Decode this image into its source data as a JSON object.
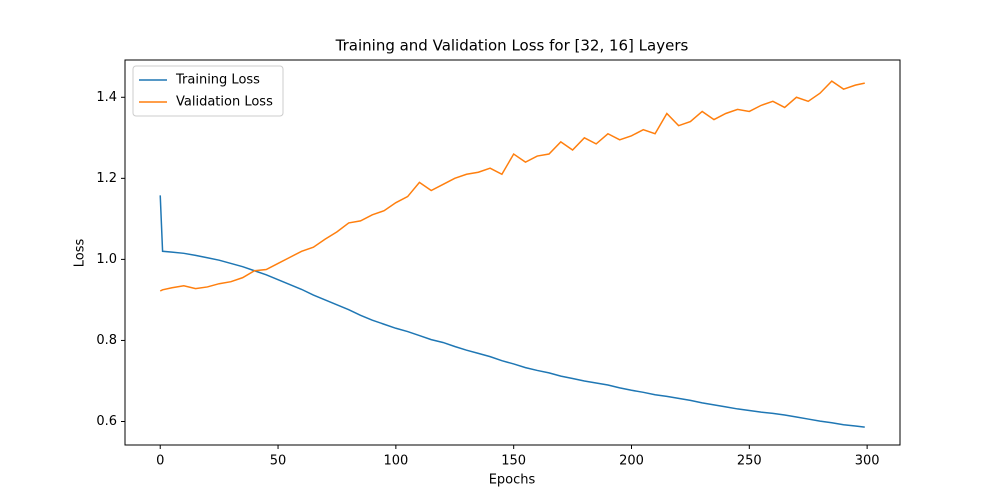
{
  "chart_data": {
    "type": "line",
    "title": "Training and Validation Loss for [32, 16] Layers",
    "x_label": "Epochs",
    "y_label": "Loss",
    "x": [
      0,
      1,
      5,
      10,
      15,
      20,
      25,
      30,
      35,
      40,
      45,
      50,
      55,
      60,
      65,
      70,
      75,
      80,
      85,
      90,
      95,
      100,
      105,
      110,
      115,
      120,
      125,
      130,
      135,
      140,
      145,
      150,
      155,
      160,
      165,
      170,
      175,
      180,
      185,
      190,
      195,
      200,
      205,
      210,
      215,
      220,
      225,
      230,
      235,
      240,
      245,
      250,
      255,
      260,
      265,
      270,
      275,
      280,
      285,
      290,
      295,
      299
    ],
    "series": [
      {
        "name": "Training Loss",
        "color": "#1f77b4",
        "values": [
          1.158,
          1.02,
          1.018,
          1.015,
          1.01,
          1.004,
          0.998,
          0.99,
          0.982,
          0.972,
          0.962,
          0.95,
          0.938,
          0.926,
          0.912,
          0.9,
          0.888,
          0.876,
          0.862,
          0.85,
          0.84,
          0.83,
          0.822,
          0.812,
          0.802,
          0.795,
          0.785,
          0.776,
          0.768,
          0.76,
          0.75,
          0.742,
          0.733,
          0.726,
          0.72,
          0.712,
          0.706,
          0.7,
          0.695,
          0.69,
          0.683,
          0.677,
          0.672,
          0.666,
          0.662,
          0.657,
          0.652,
          0.646,
          0.641,
          0.636,
          0.631,
          0.627,
          0.623,
          0.62,
          0.616,
          0.611,
          0.606,
          0.601,
          0.597,
          0.592,
          0.589,
          0.586
        ]
      },
      {
        "name": "Validation Loss",
        "color": "#ff7f0e",
        "values": [
          0.922,
          0.925,
          0.93,
          0.935,
          0.928,
          0.932,
          0.94,
          0.945,
          0.955,
          0.972,
          0.975,
          0.99,
          1.005,
          1.02,
          1.03,
          1.05,
          1.068,
          1.09,
          1.095,
          1.11,
          1.12,
          1.14,
          1.155,
          1.19,
          1.17,
          1.185,
          1.2,
          1.21,
          1.215,
          1.225,
          1.21,
          1.26,
          1.24,
          1.255,
          1.26,
          1.29,
          1.27,
          1.3,
          1.285,
          1.31,
          1.295,
          1.305,
          1.32,
          1.31,
          1.36,
          1.33,
          1.34,
          1.365,
          1.345,
          1.36,
          1.37,
          1.365,
          1.38,
          1.39,
          1.375,
          1.4,
          1.39,
          1.41,
          1.44,
          1.42,
          1.43,
          1.435
        ]
      }
    ],
    "xlim": [
      -14.95,
      313.95
    ],
    "xticks": [
      0,
      50,
      100,
      150,
      200,
      250,
      300
    ],
    "ylim": [
      0.542,
      1.492
    ],
    "yticks": [
      0.6,
      0.8,
      {
        "value": 1,
        "label": "1.0"
      },
      1.2,
      1.4
    ],
    "legend": "upper-left",
    "grid": false
  }
}
